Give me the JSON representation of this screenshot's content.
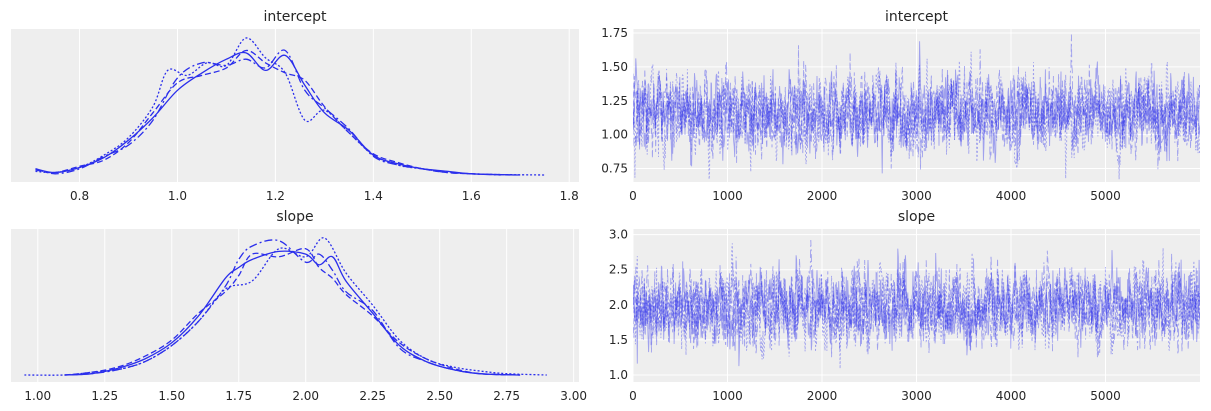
{
  "chart_data": [
    {
      "type": "area",
      "title": "intercept",
      "xlabel": "",
      "ylabel": "",
      "xlim": [
        0.66,
        1.82
      ],
      "xticks": [
        "0.8",
        "1.0",
        "1.2",
        "1.4",
        "1.6",
        "1.8"
      ],
      "yticks": [],
      "grid": true,
      "line_styles": [
        "solid",
        "dashed",
        "dashdot",
        "dotted"
      ],
      "series": [
        {
          "x": [
            0.71,
            0.75,
            0.8,
            0.85,
            0.9,
            0.95,
            1.0,
            1.05,
            1.1,
            1.14,
            1.18,
            1.22,
            1.26,
            1.3,
            1.35,
            1.4,
            1.45,
            1.5,
            1.55,
            1.6,
            1.7
          ],
          "y": [
            0.05,
            0.02,
            0.06,
            0.14,
            0.28,
            0.46,
            0.68,
            0.82,
            0.93,
            0.98,
            0.84,
            0.96,
            0.72,
            0.5,
            0.36,
            0.16,
            0.09,
            0.05,
            0.03,
            0.01,
            0.0
          ]
        },
        {
          "x": [
            0.71,
            0.75,
            0.8,
            0.85,
            0.9,
            0.95,
            1.0,
            1.05,
            1.1,
            1.14,
            1.18,
            1.22,
            1.26,
            1.3,
            1.35,
            1.4,
            1.45,
            1.5,
            1.55,
            1.6,
            1.68
          ],
          "y": [
            0.04,
            0.02,
            0.07,
            0.12,
            0.26,
            0.5,
            0.74,
            0.8,
            0.86,
            1.0,
            0.9,
            0.82,
            0.76,
            0.55,
            0.34,
            0.17,
            0.1,
            0.05,
            0.02,
            0.01,
            0.0
          ]
        },
        {
          "x": [
            0.71,
            0.75,
            0.8,
            0.85,
            0.9,
            0.95,
            1.0,
            1.05,
            1.1,
            1.14,
            1.18,
            1.22,
            1.26,
            1.3,
            1.35,
            1.4,
            1.45,
            1.5,
            1.55,
            1.6,
            1.66
          ],
          "y": [
            0.05,
            0.01,
            0.05,
            0.15,
            0.24,
            0.44,
            0.78,
            0.9,
            0.88,
            0.93,
            0.86,
            1.0,
            0.68,
            0.54,
            0.37,
            0.15,
            0.08,
            0.05,
            0.02,
            0.01,
            0.0
          ]
        },
        {
          "x": [
            0.71,
            0.75,
            0.8,
            0.85,
            0.9,
            0.95,
            0.98,
            1.02,
            1.06,
            1.1,
            1.14,
            1.18,
            1.22,
            1.26,
            1.3,
            1.35,
            1.4,
            1.45,
            1.5,
            1.6,
            1.75
          ],
          "y": [
            0.03,
            0.02,
            0.06,
            0.16,
            0.3,
            0.55,
            0.84,
            0.8,
            0.9,
            0.88,
            1.1,
            0.94,
            0.82,
            0.44,
            0.52,
            0.34,
            0.16,
            0.08,
            0.05,
            0.01,
            0.0
          ]
        }
      ]
    },
    {
      "type": "line",
      "title": "intercept",
      "xlabel": "",
      "ylabel": "",
      "xlim": [
        0,
        6000
      ],
      "ylim": [
        0.65,
        1.78
      ],
      "xticks": [
        "0",
        "1000",
        "2000",
        "3000",
        "4000",
        "5000"
      ],
      "yticks": [
        "0.75",
        "1.00",
        "1.25",
        "1.50",
        "1.75"
      ],
      "grid": true,
      "n_draws": 6000,
      "n_chains": 4,
      "center": 1.15,
      "spread": 0.14
    },
    {
      "type": "area",
      "title": "slope",
      "xlabel": "",
      "ylabel": "",
      "xlim": [
        0.9,
        3.02
      ],
      "xticks": [
        "1.00",
        "1.25",
        "1.50",
        "1.75",
        "2.00",
        "2.25",
        "2.50",
        "2.75",
        "3.00"
      ],
      "yticks": [],
      "grid": true,
      "line_styles": [
        "solid",
        "dashed",
        "dashdot",
        "dotted"
      ],
      "series": [
        {
          "x": [
            1.1,
            1.2,
            1.3,
            1.4,
            1.5,
            1.6,
            1.7,
            1.75,
            1.8,
            1.9,
            2.0,
            2.05,
            2.1,
            2.15,
            2.25,
            2.35,
            2.45,
            2.55,
            2.65,
            2.8
          ],
          "y": [
            0.0,
            0.01,
            0.05,
            0.12,
            0.24,
            0.44,
            0.72,
            0.8,
            0.86,
            0.92,
            0.9,
            0.82,
            0.88,
            0.7,
            0.46,
            0.22,
            0.1,
            0.04,
            0.01,
            0.0
          ]
        },
        {
          "x": [
            1.1,
            1.2,
            1.3,
            1.4,
            1.5,
            1.6,
            1.7,
            1.75,
            1.8,
            1.9,
            2.0,
            2.05,
            2.1,
            2.15,
            2.25,
            2.35,
            2.45,
            2.55,
            2.65,
            2.8
          ],
          "y": [
            0.0,
            0.02,
            0.06,
            0.14,
            0.26,
            0.46,
            0.62,
            0.74,
            0.9,
            0.88,
            0.94,
            0.8,
            0.72,
            0.6,
            0.44,
            0.24,
            0.12,
            0.05,
            0.01,
            0.0
          ]
        },
        {
          "x": [
            1.1,
            1.2,
            1.3,
            1.4,
            1.5,
            1.6,
            1.7,
            1.75,
            1.8,
            1.9,
            2.0,
            2.05,
            2.1,
            2.15,
            2.25,
            2.35,
            2.45,
            2.55,
            2.65,
            2.8
          ],
          "y": [
            0.0,
            0.01,
            0.04,
            0.1,
            0.22,
            0.4,
            0.66,
            0.86,
            0.96,
            1.0,
            0.84,
            0.9,
            0.78,
            0.62,
            0.48,
            0.2,
            0.1,
            0.04,
            0.01,
            0.0
          ]
        },
        {
          "x": [
            0.95,
            1.1,
            1.2,
            1.3,
            1.4,
            1.5,
            1.6,
            1.7,
            1.8,
            1.9,
            2.0,
            2.07,
            2.15,
            2.25,
            2.35,
            2.45,
            2.55,
            2.65,
            2.75,
            2.9
          ],
          "y": [
            0.0,
            0.0,
            0.02,
            0.04,
            0.1,
            0.22,
            0.4,
            0.64,
            0.7,
            0.94,
            0.88,
            1.02,
            0.76,
            0.52,
            0.26,
            0.12,
            0.06,
            0.03,
            0.01,
            0.0
          ]
        }
      ]
    },
    {
      "type": "line",
      "title": "slope",
      "xlabel": "",
      "ylabel": "",
      "xlim": [
        0,
        6000
      ],
      "ylim": [
        0.9,
        3.08
      ],
      "xticks": [
        "0",
        "1000",
        "2000",
        "3000",
        "4000",
        "5000"
      ],
      "yticks": [
        "1.0",
        "1.5",
        "2.0",
        "2.5",
        "3.0"
      ],
      "grid": true,
      "n_draws": 6000,
      "n_chains": 4,
      "center": 1.95,
      "spread": 0.27
    }
  ],
  "style": {
    "background": "#ffffff",
    "axes_face": "#eeeeee",
    "grid_color": "#ffffff",
    "line_color": "#2a2eec",
    "trace_color": "#2a2eec",
    "trace_opacity": 0.4,
    "text_color": "#262626"
  }
}
